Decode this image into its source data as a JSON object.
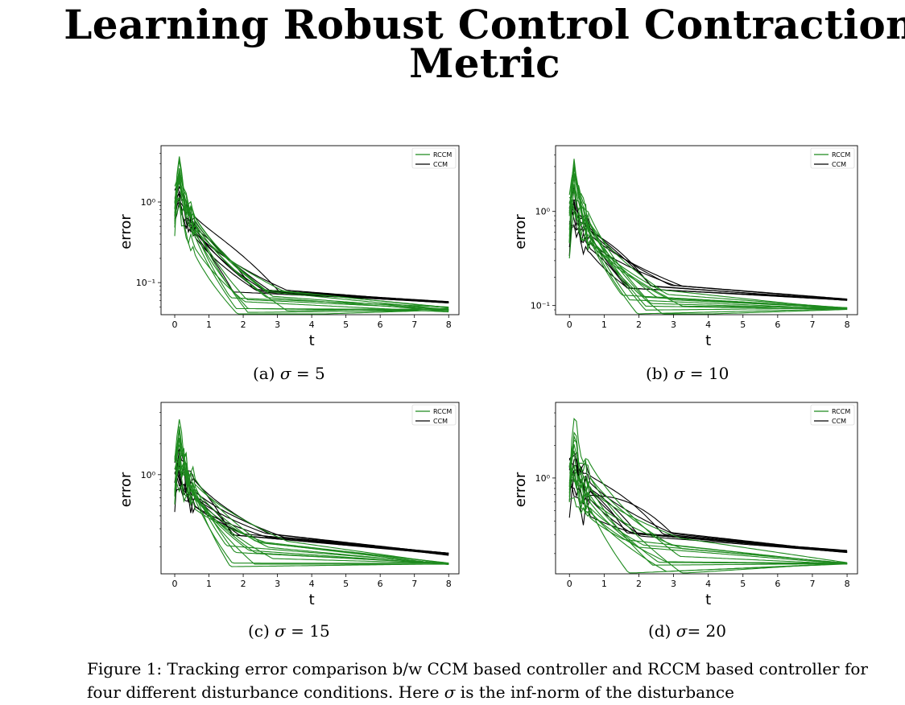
{
  "title": {
    "line1": "Learning Robust Control Contraction",
    "line2": "Metric"
  },
  "colors": {
    "rccm": "#1e8a1e",
    "ccm": "#000000"
  },
  "panels": [
    {
      "caption_prefix": "(a)",
      "caption_sym": "σ",
      "caption_rest": " = 5"
    },
    {
      "caption_prefix": "(b)",
      "caption_sym": "σ",
      "caption_rest": " = 10"
    },
    {
      "caption_prefix": "(c)",
      "caption_sym": "σ",
      "caption_rest": " = 15"
    },
    {
      "caption_prefix": "(d)",
      "caption_sym": "σ",
      "caption_rest": "= 20"
    }
  ],
  "figure_caption": {
    "line1": "Figure 1: Tracking error comparison b/w CCM based controller and RCCM based controller for",
    "line2_a": "four different disturbance conditions. Here ",
    "line2_sym": "σ",
    "line2_b": " is the inf-norm of the disturbance"
  },
  "chart_data": [
    {
      "type": "line",
      "log_y": true,
      "xlabel": "t",
      "ylabel": "error",
      "x_ticks": [
        "0",
        "1",
        "2",
        "3",
        "4",
        "5",
        "6",
        "7",
        "8"
      ],
      "y_ticks": [
        {
          "label": "10⁰",
          "value": 1
        },
        {
          "label": "10⁻¹",
          "value": 0.1
        }
      ],
      "ylim": [
        0.04,
        5
      ],
      "xlim": [
        -0.4,
        8.3
      ],
      "legend": [
        "RCCM",
        "CCM"
      ],
      "series": [
        {
          "name": "CCM",
          "final": 0.057,
          "plateau": 0.08
        },
        {
          "name": "RCCM",
          "final_min": 0.043,
          "final_max": 0.05
        }
      ]
    },
    {
      "type": "line",
      "log_y": true,
      "xlabel": "t",
      "ylabel": "error",
      "x_ticks": [
        "0",
        "1",
        "2",
        "3",
        "4",
        "5",
        "6",
        "7",
        "8"
      ],
      "y_ticks": [
        {
          "label": "10⁰",
          "value": 1
        },
        {
          "label": "10⁻¹",
          "value": 0.1
        }
      ],
      "ylim": [
        0.08,
        5
      ],
      "xlim": [
        -0.4,
        8.3
      ],
      "legend": [
        "RCCM",
        "CCM"
      ],
      "series": [
        {
          "name": "CCM",
          "final": 0.115,
          "plateau": 0.16
        },
        {
          "name": "RCCM",
          "final_min": 0.09,
          "final_max": 0.095
        }
      ]
    },
    {
      "type": "line",
      "log_y": true,
      "xlabel": "t",
      "ylabel": "error",
      "x_ticks": [
        "0",
        "1",
        "2",
        "3",
        "4",
        "5",
        "6",
        "7",
        "8"
      ],
      "y_ticks": [
        {
          "label": "10⁰",
          "value": 1
        }
      ],
      "ylim": [
        0.11,
        5
      ],
      "xlim": [
        -0.4,
        8.3
      ],
      "legend": [
        "RCCM",
        "CCM"
      ],
      "series": [
        {
          "name": "CCM",
          "final": 0.17,
          "plateau": 0.26
        },
        {
          "name": "RCCM",
          "final_min": 0.135,
          "final_max": 0.14
        }
      ]
    },
    {
      "type": "line",
      "log_y": true,
      "xlabel": "t",
      "ylabel": "error",
      "x_ticks": [
        "0",
        "1",
        "2",
        "3",
        "4",
        "5",
        "6",
        "7",
        "8"
      ],
      "y_ticks": [
        {
          "label": "10⁰",
          "value": 1
        }
      ],
      "ylim": [
        0.13,
        5
      ],
      "xlim": [
        -0.4,
        8.3
      ],
      "legend": [
        "RCCM",
        "CCM"
      ],
      "series": [
        {
          "name": "CCM",
          "final": 0.21,
          "plateau": 0.3
        },
        {
          "name": "RCCM",
          "final_min": 0.16,
          "final_max": 0.165
        }
      ]
    }
  ]
}
